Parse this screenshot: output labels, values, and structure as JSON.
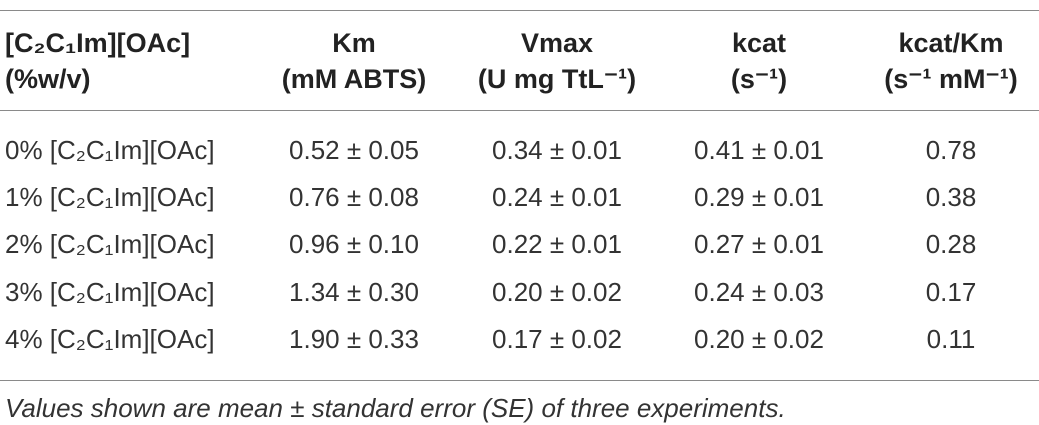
{
  "table": {
    "headers": [
      {
        "line1": "[C₂C₁Im][OAc]",
        "line2": "(%w/v)"
      },
      {
        "line1": "Km",
        "line2": "(mM ABTS)"
      },
      {
        "line1": "Vmax",
        "line2": "(U mg TtL⁻¹)"
      },
      {
        "line1": "kcat",
        "line2": "(s⁻¹)"
      },
      {
        "line1": "kcat/Km",
        "line2": "(s⁻¹ mM⁻¹)"
      }
    ],
    "rows": [
      {
        "condition": "0% [C₂C₁Im][OAc]",
        "km": "0.52 ± 0.05",
        "vmax": "0.34 ± 0.01",
        "kcat": "0.41 ± 0.01",
        "kcat_km": "0.78"
      },
      {
        "condition": "1% [C₂C₁Im][OAc]",
        "km": "0.76 ± 0.08",
        "vmax": "0.24 ± 0.01",
        "kcat": "0.29 ± 0.01",
        "kcat_km": "0.38"
      },
      {
        "condition": "2% [C₂C₁Im][OAc]",
        "km": "0.96 ± 0.10",
        "vmax": "0.22 ± 0.01",
        "kcat": "0.27 ± 0.01",
        "kcat_km": "0.28"
      },
      {
        "condition": "3% [C₂C₁Im][OAc]",
        "km": "1.34 ± 0.30",
        "vmax": "0.20 ± 0.02",
        "kcat": "0.24 ± 0.03",
        "kcat_km": "0.17"
      },
      {
        "condition": "4% [C₂C₁Im][OAc]",
        "km": "1.90 ± 0.33",
        "vmax": "0.17 ± 0.02",
        "kcat": "0.20 ± 0.02",
        "kcat_km": "0.11"
      }
    ]
  },
  "footnote": "Values shown are mean ± standard error (SE) of three experiments."
}
